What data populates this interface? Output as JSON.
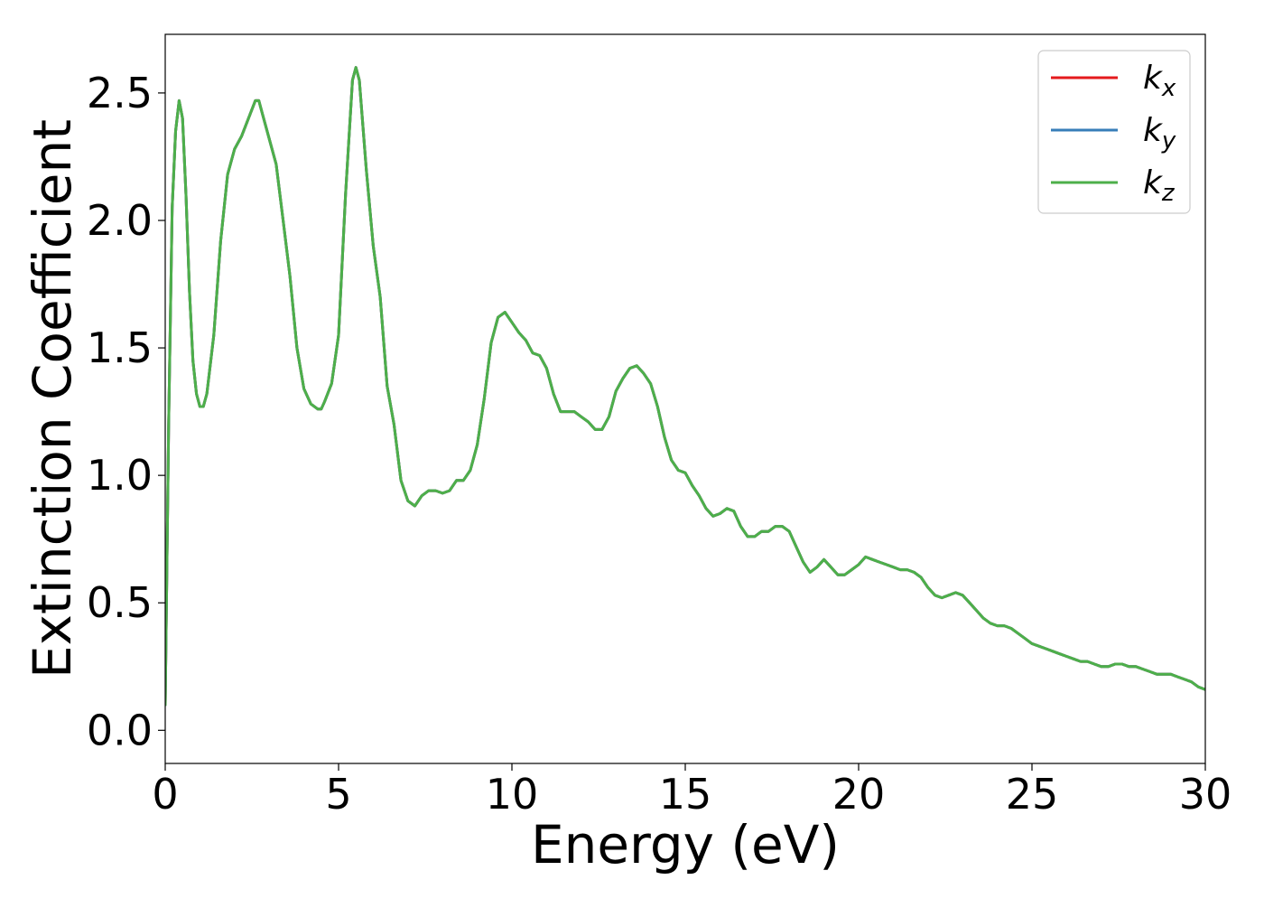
{
  "chart_data": {
    "type": "line",
    "xlabel": "Energy (eV)",
    "ylabel": "Extinction Coefficient",
    "xlim": [
      0,
      30
    ],
    "ylim": [
      -0.13,
      2.73
    ],
    "xticks": [
      0,
      5,
      10,
      15,
      20,
      25,
      30
    ],
    "xtick_labels": [
      "0",
      "5",
      "10",
      "15",
      "20",
      "25",
      "30"
    ],
    "yticks": [
      0.0,
      0.5,
      1.0,
      1.5,
      2.0,
      2.5
    ],
    "ytick_labels": [
      "0.0",
      "0.5",
      "1.0",
      "1.5",
      "2.0",
      "2.5"
    ],
    "grid": false,
    "legend_position": "top-right",
    "x": [
      0,
      0.1,
      0.2,
      0.3,
      0.4,
      0.5,
      0.6,
      0.7,
      0.8,
      0.9,
      1.0,
      1.1,
      1.2,
      1.4,
      1.6,
      1.8,
      2.0,
      2.2,
      2.4,
      2.6,
      2.7,
      2.8,
      3.0,
      3.2,
      3.4,
      3.6,
      3.8,
      4.0,
      4.2,
      4.4,
      4.5,
      4.6,
      4.8,
      5.0,
      5.2,
      5.4,
      5.5,
      5.6,
      5.8,
      6.0,
      6.2,
      6.4,
      6.6,
      6.8,
      7.0,
      7.2,
      7.4,
      7.6,
      7.8,
      8.0,
      8.2,
      8.4,
      8.6,
      8.8,
      9.0,
      9.2,
      9.4,
      9.6,
      9.8,
      10.0,
      10.2,
      10.4,
      10.6,
      10.8,
      11.0,
      11.2,
      11.4,
      11.6,
      11.8,
      12.0,
      12.2,
      12.4,
      12.6,
      12.8,
      13.0,
      13.2,
      13.4,
      13.6,
      13.8,
      14.0,
      14.2,
      14.4,
      14.6,
      14.8,
      15.0,
      15.2,
      15.4,
      15.6,
      15.8,
      16.0,
      16.2,
      16.4,
      16.6,
      16.8,
      17.0,
      17.2,
      17.4,
      17.6,
      17.8,
      18.0,
      18.2,
      18.4,
      18.6,
      18.8,
      19.0,
      19.2,
      19.4,
      19.6,
      19.8,
      20.0,
      20.2,
      20.4,
      20.6,
      20.8,
      21.0,
      21.2,
      21.4,
      21.6,
      21.8,
      22.0,
      22.2,
      22.4,
      22.6,
      22.8,
      23.0,
      23.2,
      23.4,
      23.6,
      23.8,
      24.0,
      24.2,
      24.4,
      24.6,
      24.8,
      25.0,
      25.2,
      25.4,
      25.6,
      25.8,
      26.0,
      26.2,
      26.4,
      26.6,
      26.8,
      27.0,
      27.2,
      27.4,
      27.6,
      27.8,
      28.0,
      28.2,
      28.4,
      28.6,
      28.8,
      29.0,
      29.2,
      29.4,
      29.6,
      29.8,
      30.0
    ],
    "series": [
      {
        "name": "k_x",
        "color": "#e41a1c",
        "values": [
          0.1,
          1.2,
          2.05,
          2.35,
          2.47,
          2.4,
          2.1,
          1.72,
          1.45,
          1.32,
          1.27,
          1.27,
          1.32,
          1.55,
          1.92,
          2.18,
          2.28,
          2.33,
          2.4,
          2.47,
          2.47,
          2.42,
          2.32,
          2.22,
          2.0,
          1.78,
          1.5,
          1.34,
          1.28,
          1.26,
          1.26,
          1.29,
          1.36,
          1.55,
          2.1,
          2.55,
          2.6,
          2.55,
          2.2,
          1.9,
          1.7,
          1.35,
          1.2,
          0.98,
          0.9,
          0.88,
          0.92,
          0.94,
          0.94,
          0.93,
          0.94,
          0.98,
          0.98,
          1.02,
          1.12,
          1.3,
          1.52,
          1.62,
          1.64,
          1.6,
          1.56,
          1.53,
          1.48,
          1.47,
          1.42,
          1.32,
          1.25,
          1.25,
          1.25,
          1.23,
          1.21,
          1.18,
          1.18,
          1.23,
          1.33,
          1.38,
          1.42,
          1.43,
          1.4,
          1.36,
          1.27,
          1.15,
          1.06,
          1.02,
          1.01,
          0.96,
          0.92,
          0.87,
          0.84,
          0.85,
          0.87,
          0.86,
          0.8,
          0.76,
          0.76,
          0.78,
          0.78,
          0.8,
          0.8,
          0.78,
          0.72,
          0.66,
          0.62,
          0.64,
          0.67,
          0.64,
          0.61,
          0.61,
          0.63,
          0.65,
          0.68,
          0.67,
          0.66,
          0.65,
          0.64,
          0.63,
          0.63,
          0.62,
          0.6,
          0.56,
          0.53,
          0.52,
          0.53,
          0.54,
          0.53,
          0.5,
          0.47,
          0.44,
          0.42,
          0.41,
          0.41,
          0.4,
          0.38,
          0.36,
          0.34,
          0.33,
          0.32,
          0.31,
          0.3,
          0.29,
          0.28,
          0.27,
          0.27,
          0.26,
          0.25,
          0.25,
          0.26,
          0.26,
          0.25,
          0.25,
          0.24,
          0.23,
          0.22,
          0.22,
          0.22,
          0.21,
          0.2,
          0.19,
          0.17,
          0.16
        ]
      },
      {
        "name": "k_y",
        "color": "#377eb8",
        "values": [
          0.1,
          1.2,
          2.05,
          2.35,
          2.47,
          2.4,
          2.1,
          1.72,
          1.45,
          1.32,
          1.27,
          1.27,
          1.32,
          1.55,
          1.92,
          2.18,
          2.28,
          2.33,
          2.4,
          2.47,
          2.47,
          2.42,
          2.32,
          2.22,
          2.0,
          1.78,
          1.5,
          1.34,
          1.28,
          1.26,
          1.26,
          1.29,
          1.36,
          1.55,
          2.1,
          2.55,
          2.6,
          2.55,
          2.2,
          1.9,
          1.7,
          1.35,
          1.2,
          0.98,
          0.9,
          0.88,
          0.92,
          0.94,
          0.94,
          0.93,
          0.94,
          0.98,
          0.98,
          1.02,
          1.12,
          1.3,
          1.52,
          1.62,
          1.64,
          1.6,
          1.56,
          1.53,
          1.48,
          1.47,
          1.42,
          1.32,
          1.25,
          1.25,
          1.25,
          1.23,
          1.21,
          1.18,
          1.18,
          1.23,
          1.33,
          1.38,
          1.42,
          1.43,
          1.4,
          1.36,
          1.27,
          1.15,
          1.06,
          1.02,
          1.01,
          0.96,
          0.92,
          0.87,
          0.84,
          0.85,
          0.87,
          0.86,
          0.8,
          0.76,
          0.76,
          0.78,
          0.78,
          0.8,
          0.8,
          0.78,
          0.72,
          0.66,
          0.62,
          0.64,
          0.67,
          0.64,
          0.61,
          0.61,
          0.63,
          0.65,
          0.68,
          0.67,
          0.66,
          0.65,
          0.64,
          0.63,
          0.63,
          0.62,
          0.6,
          0.56,
          0.53,
          0.52,
          0.53,
          0.54,
          0.53,
          0.5,
          0.47,
          0.44,
          0.42,
          0.41,
          0.41,
          0.4,
          0.38,
          0.36,
          0.34,
          0.33,
          0.32,
          0.31,
          0.3,
          0.29,
          0.28,
          0.27,
          0.27,
          0.26,
          0.25,
          0.25,
          0.26,
          0.26,
          0.25,
          0.25,
          0.24,
          0.23,
          0.22,
          0.22,
          0.22,
          0.21,
          0.2,
          0.19,
          0.17,
          0.16
        ]
      },
      {
        "name": "k_z",
        "color": "#4daf4a",
        "values": [
          0.1,
          1.2,
          2.05,
          2.35,
          2.47,
          2.4,
          2.1,
          1.72,
          1.45,
          1.32,
          1.27,
          1.27,
          1.32,
          1.55,
          1.92,
          2.18,
          2.28,
          2.33,
          2.4,
          2.47,
          2.47,
          2.42,
          2.32,
          2.22,
          2.0,
          1.78,
          1.5,
          1.34,
          1.28,
          1.26,
          1.26,
          1.29,
          1.36,
          1.55,
          2.1,
          2.55,
          2.6,
          2.55,
          2.2,
          1.9,
          1.7,
          1.35,
          1.2,
          0.98,
          0.9,
          0.88,
          0.92,
          0.94,
          0.94,
          0.93,
          0.94,
          0.98,
          0.98,
          1.02,
          1.12,
          1.3,
          1.52,
          1.62,
          1.64,
          1.6,
          1.56,
          1.53,
          1.48,
          1.47,
          1.42,
          1.32,
          1.25,
          1.25,
          1.25,
          1.23,
          1.21,
          1.18,
          1.18,
          1.23,
          1.33,
          1.38,
          1.42,
          1.43,
          1.4,
          1.36,
          1.27,
          1.15,
          1.06,
          1.02,
          1.01,
          0.96,
          0.92,
          0.87,
          0.84,
          0.85,
          0.87,
          0.86,
          0.8,
          0.76,
          0.76,
          0.78,
          0.78,
          0.8,
          0.8,
          0.78,
          0.72,
          0.66,
          0.62,
          0.64,
          0.67,
          0.64,
          0.61,
          0.61,
          0.63,
          0.65,
          0.68,
          0.67,
          0.66,
          0.65,
          0.64,
          0.63,
          0.63,
          0.62,
          0.6,
          0.56,
          0.53,
          0.52,
          0.53,
          0.54,
          0.53,
          0.5,
          0.47,
          0.44,
          0.42,
          0.41,
          0.41,
          0.4,
          0.38,
          0.36,
          0.34,
          0.33,
          0.32,
          0.31,
          0.3,
          0.29,
          0.28,
          0.27,
          0.27,
          0.26,
          0.25,
          0.25,
          0.26,
          0.26,
          0.25,
          0.25,
          0.24,
          0.23,
          0.22,
          0.22,
          0.22,
          0.21,
          0.2,
          0.19,
          0.17,
          0.16
        ]
      }
    ],
    "legend": [
      {
        "base": "k",
        "sub": "x"
      },
      {
        "base": "k",
        "sub": "y"
      },
      {
        "base": "k",
        "sub": "z"
      }
    ]
  }
}
